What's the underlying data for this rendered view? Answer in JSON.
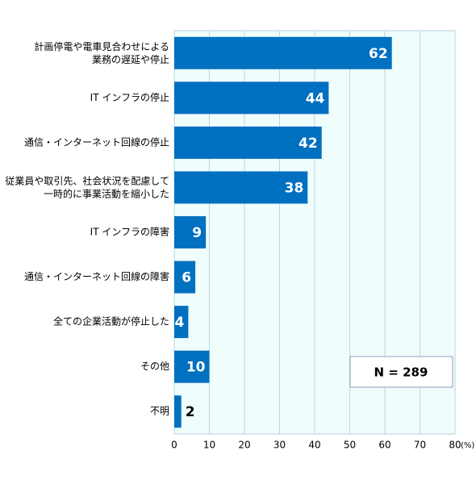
{
  "chart_data": {
    "type": "barh",
    "categories": [
      "計画停電や電車見合わせによる\n業務の遅延や停止",
      "IT インフラの停止",
      "通信・インターネット回線の停止",
      "従業員や取引先、社会状況を配慮して\n一時的に事業活動を縮小した",
      "IT インフラの障害",
      "通信・インターネット回線の障害",
      "全ての企業活動が停止した",
      "その他",
      "不明"
    ],
    "values": [
      62,
      44,
      42,
      38,
      9,
      6,
      4,
      10,
      2
    ],
    "color": "#0070c0",
    "xlim": [
      0,
      80
    ],
    "xticks": [
      0,
      10,
      20,
      30,
      40,
      50,
      60,
      70,
      80
    ],
    "x_unit": "(%)",
    "grid": true,
    "annotation": "N = 289"
  }
}
